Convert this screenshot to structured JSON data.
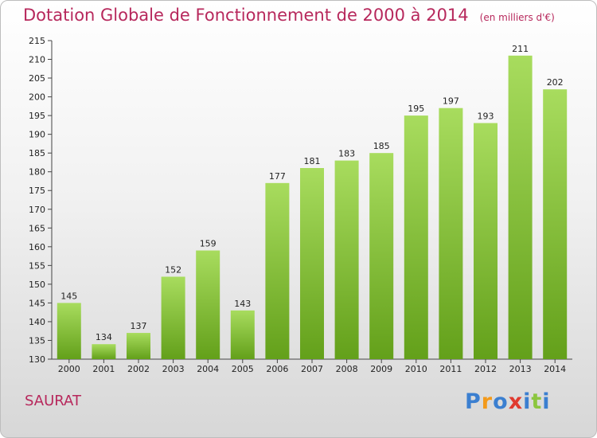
{
  "title": "Dotation Globale de Fonctionnement de 2000 à 2014",
  "unit": "(en milliers d'€)",
  "commune": "SAURAT",
  "logo": {
    "text": "Proxiti",
    "letters": [
      "P",
      "r",
      "o",
      "x",
      "i",
      "t",
      "i"
    ],
    "colors": [
      "#3b7fd0",
      "#f39a1b",
      "#3b7fd0",
      "#e03a2f",
      "#3b7fd0",
      "#8cc63f",
      "#3b7fd0"
    ]
  },
  "colors": {
    "accent": "#b7285c",
    "bar_light": "#a8dc5e",
    "bar_dark": "#63a01a"
  },
  "chart_data": {
    "type": "bar",
    "title": "Dotation Globale de Fonctionnement de 2000 à 2014",
    "subtitle": "(en milliers d'€)",
    "categories": [
      "2000",
      "2001",
      "2002",
      "2003",
      "2004",
      "2005",
      "2006",
      "2007",
      "2008",
      "2009",
      "2010",
      "2011",
      "2012",
      "2013",
      "2014"
    ],
    "values": [
      145,
      134,
      137,
      152,
      159,
      143,
      177,
      181,
      183,
      185,
      195,
      197,
      193,
      211,
      202
    ],
    "ylim": [
      130,
      215
    ],
    "yticks": [
      130,
      135,
      140,
      145,
      150,
      155,
      160,
      165,
      170,
      175,
      180,
      185,
      190,
      195,
      200,
      205,
      210,
      215
    ],
    "grid": false,
    "xlabel": "",
    "ylabel": ""
  }
}
